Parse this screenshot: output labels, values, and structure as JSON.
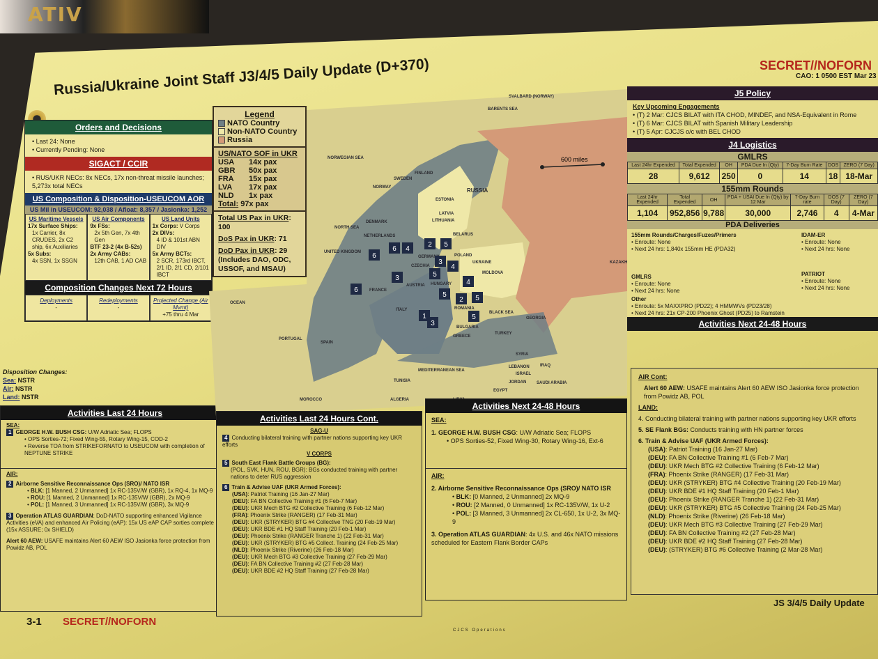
{
  "header": {
    "title": "Russia/Ukraine Joint Staff J3/4/5 Daily Update (D+370)",
    "classification": "SECRET//NOFORN",
    "cao": "CAO: 1 0500 EST Mar 23",
    "page": "3-1",
    "footer_class": "SECRET//NOFORN",
    "footer_right": "JS 3/4/5 Daily Update",
    "footer_center": "CJCS Operations",
    "magazine_text": "ATIV"
  },
  "orders": {
    "title": "Orders and Decisions",
    "items": [
      "Last 24: None",
      "Currently Pending: None"
    ]
  },
  "sigact": {
    "title": "SIGACT / CCIR",
    "items": [
      "RUS/UKR NECs: 8x NECs, 17x non-threat missile launches; 5,273x total NECs"
    ]
  },
  "composition": {
    "title": "US Composition & Disposition-USEUCOM AOR",
    "summary": "US Mil in USEUCOM: 92,038 / Afloat: 8,357 / Jasionka: 1,252",
    "cols": [
      {
        "title": "US Maritime Vessels",
        "lines": [
          {
            "b": "17x Surface Ships:"
          },
          {
            "li": "1x Carrier, 8x CRUDES, 2x C2 ship, 6x Auxiliaries"
          },
          {
            "b": "5x Subs:"
          },
          {
            "li": "4x SSN, 1x SSGN"
          }
        ]
      },
      {
        "title": "US Air Components",
        "lines": [
          {
            "b": "9x FSs:"
          },
          {
            "li": "2x 5th Gen, 7x 4th Gen"
          },
          {
            "b": "BTF 23-2 (4x B-52s)"
          },
          {
            "b": "2x Army CABs:"
          },
          {
            "li": "12th CAB, 1 AD CAB"
          }
        ]
      },
      {
        "title": "US Land Units",
        "lines": [
          {
            "b": "1x Corps:",
            "t": " V Corps"
          },
          {
            "b": "2x DIVs:"
          },
          {
            "li": "4 ID & 101st ABN DIV"
          },
          {
            "b": "5x Army BCTs:"
          },
          {
            "li": "2 SCR, 173rd IBCT, 2/1 ID, 2/1 CD, 2/101 IBCT"
          }
        ]
      }
    ]
  },
  "changes": {
    "title": "Composition Changes Next 72 Hours",
    "cols": [
      {
        "h": "Deployments",
        "v": "-"
      },
      {
        "h": "Redeployments",
        "v": "-"
      },
      {
        "h": "Projected Change (Air Mvmt)",
        "v": "+75 thru 4 Mar"
      }
    ]
  },
  "disposition": {
    "title": "Disposition Changes:",
    "rows": [
      {
        "k": "Sea:",
        "v": "NSTR"
      },
      {
        "k": "Air:",
        "v": "NSTR"
      },
      {
        "k": "Land:",
        "v": "NSTR"
      }
    ]
  },
  "legend": {
    "title": "Legend",
    "items": [
      {
        "label": "NATO Country",
        "color": "#6f7f86"
      },
      {
        "label": "Non-NATO Country",
        "color": "#efe8a8"
      },
      {
        "label": "Russia",
        "color": "#d49a78"
      }
    ]
  },
  "sof": {
    "title": "US/NATO SOF in UKR",
    "rows": [
      {
        "k": "USA",
        "v": "14x pax"
      },
      {
        "k": "GBR",
        "v": "50x pax"
      },
      {
        "k": "FRA",
        "v": "15x pax"
      },
      {
        "k": "LVA",
        "v": "17x pax"
      },
      {
        "k": "NLD",
        "v": "1x pax"
      }
    ],
    "total_label": "Total:",
    "total": "97x pax"
  },
  "pax": {
    "total_label": "Total US Pax in UKR",
    "total": ": 100",
    "dos_label": "DoS Pax in UKR",
    "dos": ": 71",
    "dod_label": "DoD Pax in UKR",
    "dod": ": 29",
    "dod_note": "(Includes DAO, ODC, USSOF, and MSAU)"
  },
  "map": {
    "scale": "600 miles",
    "labels": [
      "NORWEGIAN SEA",
      "BARENTS SEA",
      "NORTH SEA",
      "DENMARK",
      "NORWAY",
      "SWEDEN",
      "FINLAND",
      "RUSSIA",
      "ESTONIA",
      "LATVIA",
      "LITHUANIA",
      "BELARUS",
      "POLAND",
      "GERMANY",
      "NETHERLANDS",
      "UNITED KINGDOM",
      "FRANCE",
      "CZECHIA",
      "UKRAINE",
      "MOLDOVA",
      "AUSTRIA",
      "HUNGARY",
      "ROMANIA",
      "ITALY",
      "BULGARIA",
      "BLACK SEA",
      "TURKEY",
      "GEORGIA",
      "KAZAKHS",
      "SPAIN",
      "PORTUGAL",
      "GREECE",
      "MEDITERRANEAN SEA",
      "SYRIA",
      "IRAQ",
      "LEBANON",
      "ISRAEL",
      "JORDAN",
      "EGYPT",
      "LIBYA",
      "TUNISIA",
      "ALGERIA",
      "MOROCCO",
      "SAUDI ARABIA",
      "OCEAN",
      "SVALBARD (NORWAY)"
    ],
    "markers": [
      "6",
      "6",
      "4",
      "2",
      "5",
      "3",
      "4",
      "5",
      "3",
      "6",
      "4",
      "5",
      "2",
      "5",
      "1",
      "3",
      "5"
    ]
  },
  "j5": {
    "title": "J5 Policy",
    "sub": "Key Upcoming Engagements",
    "items": [
      "(T) 2 Mar: CJCS BILAT with ITA CHOD, MINDEF, and NSA-Equivalent in Rome",
      "(T) 6 Mar: CJCS BILAT with Spanish Military Leadership",
      "(T) 5 Apr: CJCJS o/c with BEL CHOD"
    ]
  },
  "j4": {
    "title": "J4 Logistics",
    "gmlrs": {
      "title": "GMLRS",
      "headers": [
        "Last 24hr Expended",
        "Total Expended",
        "OH",
        "PDA Due In (Qty)",
        "7-Day Burn Rate",
        "DOS",
        "ZERO (7 Day)"
      ],
      "values": [
        "28",
        "9,612",
        "250",
        "0",
        "14",
        "18",
        "18-Mar"
      ]
    },
    "rounds": {
      "title": "155mm Rounds",
      "headers": [
        "Last 24hr Expended",
        "Total Expended",
        "OH",
        "PDA + USAI Due In (Qty) by 12 Mar",
        "7-Day Burn rate",
        "DOS (7 Day)",
        "ZERO (7 Day)"
      ],
      "values": [
        "1,104",
        "952,856",
        "9,788",
        "30,000",
        "2,746",
        "4",
        "4-Mar"
      ]
    },
    "pda": {
      "title": "PDA Deliveries",
      "groups": [
        {
          "title": "155mm Rounds/Charges/Fuzes/Primers",
          "items": [
            "Enroute: None",
            "Next 24 hrs: 1,840x 155mm HE (PDA32)"
          ]
        },
        {
          "title": "GMLRS",
          "items": [
            "Enroute: None",
            "Next 24 hrs: None"
          ]
        },
        {
          "title": "IDAM-ER",
          "items": [
            "Enroute: None",
            "Next 24 hrs: None"
          ]
        },
        {
          "title": "PATRIOT",
          "items": [
            "Enroute: None",
            "Next 24 hrs: None"
          ]
        },
        {
          "title": "Other",
          "items": [
            "Enroute: 5x MAXXPRO (PD22); 4 HMMWVs (PD23/28)",
            "Next 24 hrs: 21x CP-200 Phoenix Ghost (PD25) to Ramstein"
          ]
        }
      ]
    }
  },
  "last24": {
    "title": "Activities Last 24 Hours",
    "sea": "SEA:",
    "n1": "1",
    "sea_head": "GEORGE H.W. BUSH CSG:",
    "sea_text": " U/W Adriatic Sea; FLOPS",
    "sea_items": [
      "OPS Sorties-72; Fixed Wing-55, Rotary Wing-15, COD-2",
      "Reverse TOA from STRIKEFORNATO to USEUCOM with completion of NEPTUNE STRIKE"
    ],
    "air": "AIR:",
    "n2": "2",
    "air_head": "Airborne Sensitive Reconnaissance Ops (SRO)/ NATO ISR",
    "air_items": [
      {
        "k": "BLK:",
        "v": " [1 Manned, 2 Unmanned] 1x RC-135V/W (GBR), 1x RQ-4, 1x MQ-9"
      },
      {
        "k": "ROU:",
        "v": " [1 Manned, 2 Unmanned] 1x RC-135V/W (GBR), 2x MQ-9"
      },
      {
        "k": "POL:",
        "v": " [1 Manned, 3 Unmanned] 1x RC-135V/W (GBR), 3x MQ-9"
      }
    ],
    "n3": "3",
    "atlas_head": "Operation ATLAS GUARDIAN",
    "atlas_text": ": DoD-NATO supporting enhanced Vigilance Activities (eVA) and enhanced Air Policing (eAP): 15x US eAP CAP sorties complete (15x ASSURE; 0x SHIELD)",
    "alert_head": "Alert 60 AEW:",
    "alert_text": " USAFE maintains Alert 60 AEW ISO Jasionka force protection from Powidz AB, POL"
  },
  "last24c": {
    "title": "Activities Last 24 Hours Cont.",
    "sagu": "SAG-U",
    "n4": "4",
    "sagu_text": "Conducting bilateral training with partner nations supporting key UKR efforts",
    "vcorps": "V CORPS",
    "n5": "5",
    "bg_head": "South East Flank Battle Groups (BG):",
    "bg_text": "(POL, SVK, HUN, ROU, BGR): BGs conducted training with partner nations to deter RUS aggression",
    "n6": "6",
    "train_head": "Train & Advise UAF (UKR Armed Forces):",
    "train": [
      {
        "k": "(USA)",
        "v": ": Patriot Training (16 Jan-27 Mar)"
      },
      {
        "k": "(DEU)",
        "v": ": FA BN Collective Training #1 (6 Feb-7 Mar)"
      },
      {
        "k": "(DEU)",
        "v": ": UKR Mech BTG #2 Collective Training (6 Feb-12 Mar)"
      },
      {
        "k": "(FRA)",
        "v": ": Phoenix Strike (RANGER) (17 Feb-31 Mar)"
      },
      {
        "k": "(DEU)",
        "v": ": UKR (STRYKER) BTG #4 Collective TNG (20 Feb-19 Mar)"
      },
      {
        "k": "(DEU)",
        "v": ": UKR BDE #1 HQ Staff Training (20 Feb-1 Mar)"
      },
      {
        "k": "(DEU)",
        "v": ": Phoenix Strike (RANGER Tranche 1) (22 Feb-31 Mar)"
      },
      {
        "k": "(DEU)",
        "v": ": UKR (STRYKER) BTG #5 Collect. Training (24 Feb-25 Mar)"
      },
      {
        "k": "(NLD)",
        "v": ": Phoenix Strike (Riverine) (26 Feb-18 Mar)"
      },
      {
        "k": "(DEU)",
        "v": ": UKR Mech BTG #3 Collective Training (27 Feb-29 Mar)"
      },
      {
        "k": "(DEU)",
        "v": ": FA BN Collective Training #2 (27 Feb-28 Mar)"
      },
      {
        "k": "(DEU)",
        "v": ": UKR BDE #2 HQ Staff Training (27 Feb-28 Mar)"
      }
    ]
  },
  "next48": {
    "title": "Activities Next 24-48 Hours",
    "sea": "SEA:",
    "sea_head": "1. GEORGE H.W. BUSH CSG",
    "sea_text": ": U/W Adriatic Sea; FLOPS",
    "sea_items": [
      "OPS Sorties-52, Fixed Wing-30, Rotary Wing-16, Ext-6"
    ],
    "air": "AIR:",
    "air_head": "2. Airborne Sensitive Reconnaissance Ops (SRO)/ NATO ISR",
    "air_items": [
      {
        "k": "BLK:",
        "v": " [0 Manned, 2 Unmanned] 2x MQ-9"
      },
      {
        "k": "ROU:",
        "v": " [2 Manned, 0 Unmanned] 1x RC-135V/W, 1x U-2"
      },
      {
        "k": "POL:",
        "v": " [3 Manned, 3 Unmanned] 2x CL-650, 1x U-2, 3x MQ-9"
      }
    ],
    "atlas_head": "3. Operation ATLAS GUARDIAN",
    "atlas_text": ": 4x U.S. and 46x NATO missions scheduled for Eastern Flank Border CAPs"
  },
  "next48r": {
    "title": "Activities Next 24-48 Hours",
    "aircont": "AIR Cont:",
    "alert_head": "Alert 60 AEW:",
    "alert_text": " USAFE maintains Alert 60 AEW ISO Jasionka force protection from Powidz AB, POL",
    "land": "LAND:",
    "l4": "4. Conducting bilateral training with partner nations supporting key UKR efforts",
    "l5_head": "5. SE Flank BGs:",
    "l5_text": " Conducts training with HN partner forces",
    "l6_head": "6. Train & Advise UAF (UKR Armed Forces):",
    "train": [
      {
        "k": "(USA)",
        "v": ": Patriot Training (16 Jan-27 Mar)"
      },
      {
        "k": "(DEU)",
        "v": ": FA BN Collective Training #1 (6 Feb-7 Mar)"
      },
      {
        "k": "(DEU)",
        "v": ": UKR Mech BTG #2 Collective Training (6 Feb-12 Mar)"
      },
      {
        "k": "(FRA)",
        "v": ": Phoenix Strike (RANGER) (17 Feb-31 Mar)"
      },
      {
        "k": "(DEU)",
        "v": ": UKR (STRYKER) BTG #4 Collective Training (20 Feb-19 Mar)"
      },
      {
        "k": "(DEU)",
        "v": ": UKR BDE #1 HQ Staff Training (20 Feb-1 Mar)"
      },
      {
        "k": "(DEU)",
        "v": ": Phoenix Strike (RANGER Tranche 1) (22 Feb-31 Mar)"
      },
      {
        "k": "(DEU)",
        "v": ": UKR (STRYKER) BTG #5 Collective Training (24 Feb-25 Mar)"
      },
      {
        "k": "(NLD)",
        "v": ": Phoenix Strike (Riverine) (26 Feb-18 Mar)"
      },
      {
        "k": "(DEU)",
        "v": ": UKR Mech BTG #3 Collective Training (27 Feb-29 Mar)"
      },
      {
        "k": "(DEU)",
        "v": ": FA BN Collective Training #2 (27 Feb-28 Mar)"
      },
      {
        "k": "(DEU)",
        "v": ": UKR BDE #2 HQ Staff Training (27 Feb-28 Mar)"
      },
      {
        "k": "(DEU)",
        "v": ": (STRYKER) BTG #6 Collective Training (2 Mar-28 Mar)"
      }
    ]
  }
}
